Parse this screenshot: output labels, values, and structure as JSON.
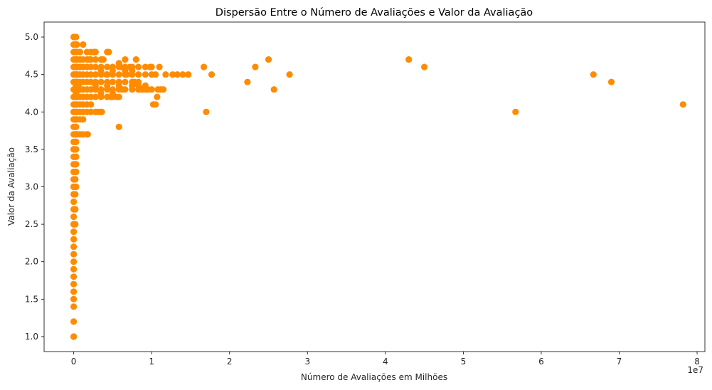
{
  "chart_data": {
    "type": "scatter",
    "title": "Dispersão Entre o Número de Avaliações e Valor da Avaliação",
    "xlabel": "Número de Avaliações em Milhões",
    "ylabel": "Valor da Avaliação",
    "x_offset_label": "1e7",
    "xlim": [
      -0.38,
      8.1
    ],
    "ylim": [
      0.8,
      5.2
    ],
    "x_ticks": [
      0,
      1,
      2,
      3,
      4,
      5,
      6,
      7,
      8
    ],
    "x_tick_labels": [
      "0",
      "1",
      "2",
      "3",
      "4",
      "5",
      "6",
      "7",
      "8"
    ],
    "y_ticks": [
      1.0,
      1.5,
      2.0,
      2.5,
      3.0,
      3.5,
      4.0,
      4.5,
      5.0
    ],
    "y_tick_labels": [
      "1.0",
      "1.5",
      "2.0",
      "2.5",
      "3.0",
      "3.5",
      "4.0",
      "4.5",
      "5.0"
    ],
    "grid": false,
    "color": "#ff8c00",
    "series": [
      {
        "x": [
          0,
          0,
          0,
          0,
          0,
          0,
          0,
          0,
          0,
          0,
          0,
          0,
          0,
          0,
          0,
          0,
          0,
          0,
          0,
          0,
          0,
          0,
          0,
          0,
          0,
          0,
          0,
          0,
          0,
          0,
          0,
          0,
          0,
          0,
          0,
          0,
          0,
          0,
          0,
          0,
          0,
          0,
          0,
          0,
          0,
          0.03,
          0.03,
          0.03,
          0.03,
          0.03,
          0.03,
          0.03,
          0.03,
          0.03,
          0.03,
          0.03,
          0.03,
          0.03,
          0.03,
          0.03,
          0.03,
          0.03,
          0.03,
          0.03,
          0.03,
          0.03,
          0.03,
          0.02,
          0.02,
          0.02,
          0.02,
          0.02,
          0.02,
          0.02,
          0.02,
          0.02,
          0.02,
          0.02,
          0.02,
          0.02,
          0.02,
          0.02,
          0.02,
          0.02,
          0.02,
          0.02,
          0.02,
          0.02,
          0.04,
          0.04,
          0.04,
          0.04,
          0.04,
          0.04,
          0.04,
          0.04,
          0.04,
          0.04,
          0.04,
          0.04,
          0.05,
          0.05,
          0.05,
          0.05,
          0.05,
          0.05,
          0.05,
          0.05,
          0.08,
          0.08,
          0.08,
          0.08,
          0.08,
          0.08,
          0.08,
          0.08,
          0.08,
          0.08,
          0.08,
          0.12,
          0.12,
          0.12,
          0.12,
          0.12,
          0.12,
          0.12,
          0.12,
          0.12,
          0.12,
          0.17,
          0.17,
          0.17,
          0.17,
          0.17,
          0.17,
          0.17,
          0.17,
          0.17,
          0.17,
          0.22,
          0.22,
          0.22,
          0.22,
          0.22,
          0.22,
          0.22,
          0.22,
          0.22,
          0.28,
          0.28,
          0.28,
          0.28,
          0.28,
          0.28,
          0.28,
          0.28,
          0.28,
          0.35,
          0.35,
          0.35,
          0.35,
          0.35,
          0.35,
          0.35,
          0.35,
          0.35,
          0.43,
          0.43,
          0.43,
          0.43,
          0.43,
          0.43,
          0.43,
          0.5,
          0.5,
          0.5,
          0.5,
          0.5,
          0.5,
          0.5,
          0.58,
          0.58,
          0.58,
          0.58,
          0.58,
          0.58,
          0.58,
          0.66,
          0.66,
          0.66,
          0.66,
          0.66,
          0.66,
          0.75,
          0.75,
          0.75,
          0.75,
          0.75,
          0.75,
          0.83,
          0.83,
          0.83,
          0.83,
          0.83,
          0.92,
          0.92,
          0.92,
          0.92,
          1.0,
          1.0,
          1.0,
          0.26,
          0.3,
          0.36,
          0.38,
          0.42,
          0.45,
          0.55,
          0.6,
          0.62,
          0.68,
          0.72,
          0.78,
          0.8,
          0.86,
          0.88,
          0.95,
          0.98,
          1.02,
          1.05,
          1.07,
          1.08,
          1.1,
          1.12,
          1.15,
          1.18,
          1.27,
          1.33,
          1.4,
          1.47,
          1.67,
          1.7,
          1.77,
          2.23,
          2.33,
          2.5,
          2.57,
          2.77,
          4.3,
          4.5,
          5.67,
          6.67,
          6.9,
          7.82,
          0.18,
          0.27,
          0.32,
          0.48,
          0.58,
          1.05,
          0.12,
          0.06,
          0.2
        ],
        "y": [
          1.0,
          1.2,
          1.4,
          1.5,
          1.6,
          1.7,
          1.8,
          1.9,
          2.0,
          2.1,
          2.2,
          2.3,
          2.4,
          2.5,
          2.6,
          2.7,
          2.8,
          2.9,
          3.0,
          3.1,
          3.2,
          3.3,
          3.4,
          3.5,
          3.6,
          3.7,
          3.8,
          3.9,
          4.0,
          4.1,
          4.2,
          4.3,
          4.4,
          4.5,
          4.6,
          4.7,
          4.8,
          4.9,
          5.0,
          1.0,
          2.5,
          3.0,
          3.5,
          4.0,
          4.5,
          3.3,
          3.5,
          3.7,
          3.8,
          3.9,
          4.0,
          4.1,
          4.2,
          4.3,
          4.4,
          4.5,
          4.6,
          4.7,
          4.8,
          4.9,
          5.0,
          3.6,
          3.4,
          3.2,
          3.0,
          4.25,
          4.35,
          3.7,
          3.8,
          3.9,
          4.0,
          4.1,
          4.2,
          4.3,
          4.4,
          4.5,
          4.6,
          4.7,
          4.8,
          4.9,
          5.0,
          3.6,
          3.5,
          3.3,
          3.1,
          2.9,
          2.7,
          2.5,
          3.7,
          3.9,
          4.0,
          4.1,
          4.2,
          4.3,
          4.4,
          4.5,
          4.6,
          4.7,
          4.8,
          4.9,
          3.7,
          4.0,
          4.2,
          4.3,
          4.4,
          4.5,
          4.6,
          4.7,
          3.7,
          3.9,
          4.0,
          4.1,
          4.2,
          4.3,
          4.4,
          4.5,
          4.6,
          4.7,
          4.8,
          3.7,
          3.9,
          4.0,
          4.1,
          4.2,
          4.3,
          4.4,
          4.5,
          4.6,
          4.7,
          3.7,
          4.1,
          4.2,
          4.3,
          4.4,
          4.5,
          4.6,
          4.7,
          4.8,
          4.0,
          4.2,
          4.3,
          4.4,
          4.5,
          4.6,
          4.7,
          4.1,
          4.0,
          4.8,
          4.2,
          4.3,
          4.4,
          4.5,
          4.6,
          4.7,
          4.0,
          4.8,
          4.35,
          4.2,
          4.3,
          4.4,
          4.5,
          4.6,
          4.0,
          4.7,
          4.25,
          4.55,
          4.3,
          4.4,
          4.5,
          4.6,
          4.2,
          4.8,
          4.35,
          4.3,
          4.4,
          4.5,
          4.6,
          4.2,
          4.25,
          4.55,
          4.3,
          4.4,
          4.5,
          4.6,
          4.2,
          4.65,
          4.35,
          4.3,
          4.4,
          4.5,
          4.6,
          4.7,
          4.55,
          4.3,
          4.4,
          4.5,
          4.6,
          4.35,
          4.55,
          4.3,
          4.4,
          4.5,
          4.6,
          4.35,
          4.3,
          4.5,
          4.6,
          4.35,
          4.3,
          4.5,
          4.6,
          4.8,
          4.0,
          4.0,
          4.7,
          4.5,
          4.8,
          4.2,
          4.6,
          4.3,
          4.5,
          4.6,
          4.4,
          4.7,
          4.3,
          4.3,
          4.3,
          4.6,
          4.1,
          4.5,
          4.2,
          4.3,
          4.6,
          4.3,
          4.3,
          4.5,
          4.5,
          4.5,
          4.5,
          4.5,
          4.6,
          4.0,
          4.5,
          4.4,
          4.6,
          4.7,
          4.3,
          4.5,
          4.7,
          4.6,
          4.0,
          4.5,
          4.4,
          4.1,
          3.7,
          4.8,
          4.0,
          4.2,
          3.8,
          4.1,
          4.9,
          4.35,
          4.7
        ]
      }
    ]
  }
}
